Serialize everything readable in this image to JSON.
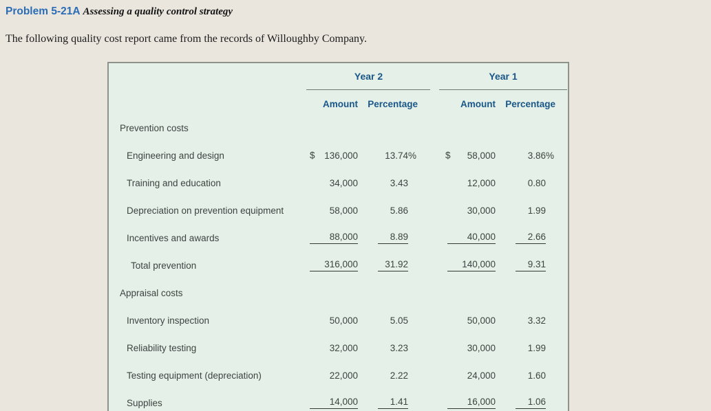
{
  "heading": {
    "code": "Problem 5-21A",
    "title": "Assessing a quality control strategy"
  },
  "intro_text": "The following quality cost report came from the records of Willoughby Company.",
  "report_table": {
    "year_headers": [
      "Year 2",
      "Year 1"
    ],
    "col_headers": [
      "Amount",
      "Percentage",
      "Amount",
      "Percentage"
    ],
    "rows": [
      {
        "label": "Prevention costs",
        "type": "section"
      },
      {
        "label": "Engineering and design",
        "y2_cur": "$",
        "y2_amount": "136,000",
        "y2_pct": "13.74",
        "y2_sign": "%",
        "y1_cur": "$",
        "y1_amount": "58,000",
        "y1_pct": "3.86",
        "y1_sign": "%"
      },
      {
        "label": "Training and education",
        "y2_amount": "34,000",
        "y2_pct": "3.43",
        "y1_amount": "12,000",
        "y1_pct": "0.80"
      },
      {
        "label": "Depreciation on prevention equipment",
        "y2_amount": "58,000",
        "y2_pct": "5.86",
        "y1_amount": "30,000",
        "y1_pct": "1.99"
      },
      {
        "label": "Incentives and awards",
        "y2_amount": "88,000",
        "y2_pct": "8.89",
        "y1_amount": "40,000",
        "y1_pct": "2.66",
        "underline": true
      },
      {
        "label": "Total prevention",
        "type": "total",
        "y2_amount": "316,000",
        "y2_pct": "31.92",
        "y1_amount": "140,000",
        "y1_pct": "9.31",
        "underline": true
      },
      {
        "label": "Appraisal costs",
        "type": "section"
      },
      {
        "label": "Inventory inspection",
        "y2_amount": "50,000",
        "y2_pct": "5.05",
        "y1_amount": "50,000",
        "y1_pct": "3.32"
      },
      {
        "label": "Reliability testing",
        "y2_amount": "32,000",
        "y2_pct": "3.23",
        "y1_amount": "30,000",
        "y1_pct": "1.99"
      },
      {
        "label": "Testing equipment (depreciation)",
        "y2_amount": "22,000",
        "y2_pct": "2.22",
        "y1_amount": "24,000",
        "y1_pct": "1.60"
      },
      {
        "label": "Supplies",
        "y2_amount": "14,000",
        "y2_pct": "1.41",
        "y1_amount": "16,000",
        "y1_pct": "1.06",
        "underline": true
      }
    ]
  },
  "colors": {
    "page_bg": "#eae6de",
    "table_bg": "#e4f0e8",
    "table_border": "#8d938b",
    "header_blue": "#1a5688",
    "title_blue": "#2a6db6",
    "text": "#3e4441"
  }
}
